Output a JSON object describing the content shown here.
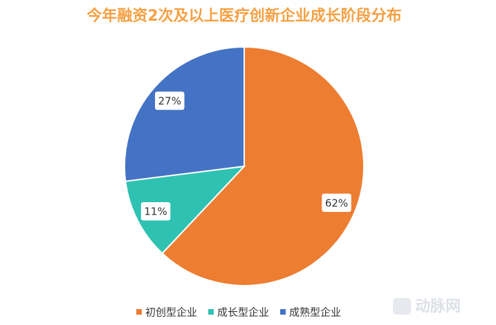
{
  "chart_data": {
    "type": "pie",
    "title": "今年融资2次及以上医疗创新企业成长阶段分布",
    "categories": [
      "初创型企业",
      "成长型企业",
      "成熟型企业"
    ],
    "values": [
      62,
      11,
      27
    ],
    "value_labels": [
      "62%",
      "11%",
      "27%"
    ],
    "colors": [
      "#ED7D31",
      "#2FC2B2",
      "#4472C4"
    ],
    "legend": "bottom"
  },
  "watermark": "动脉网"
}
